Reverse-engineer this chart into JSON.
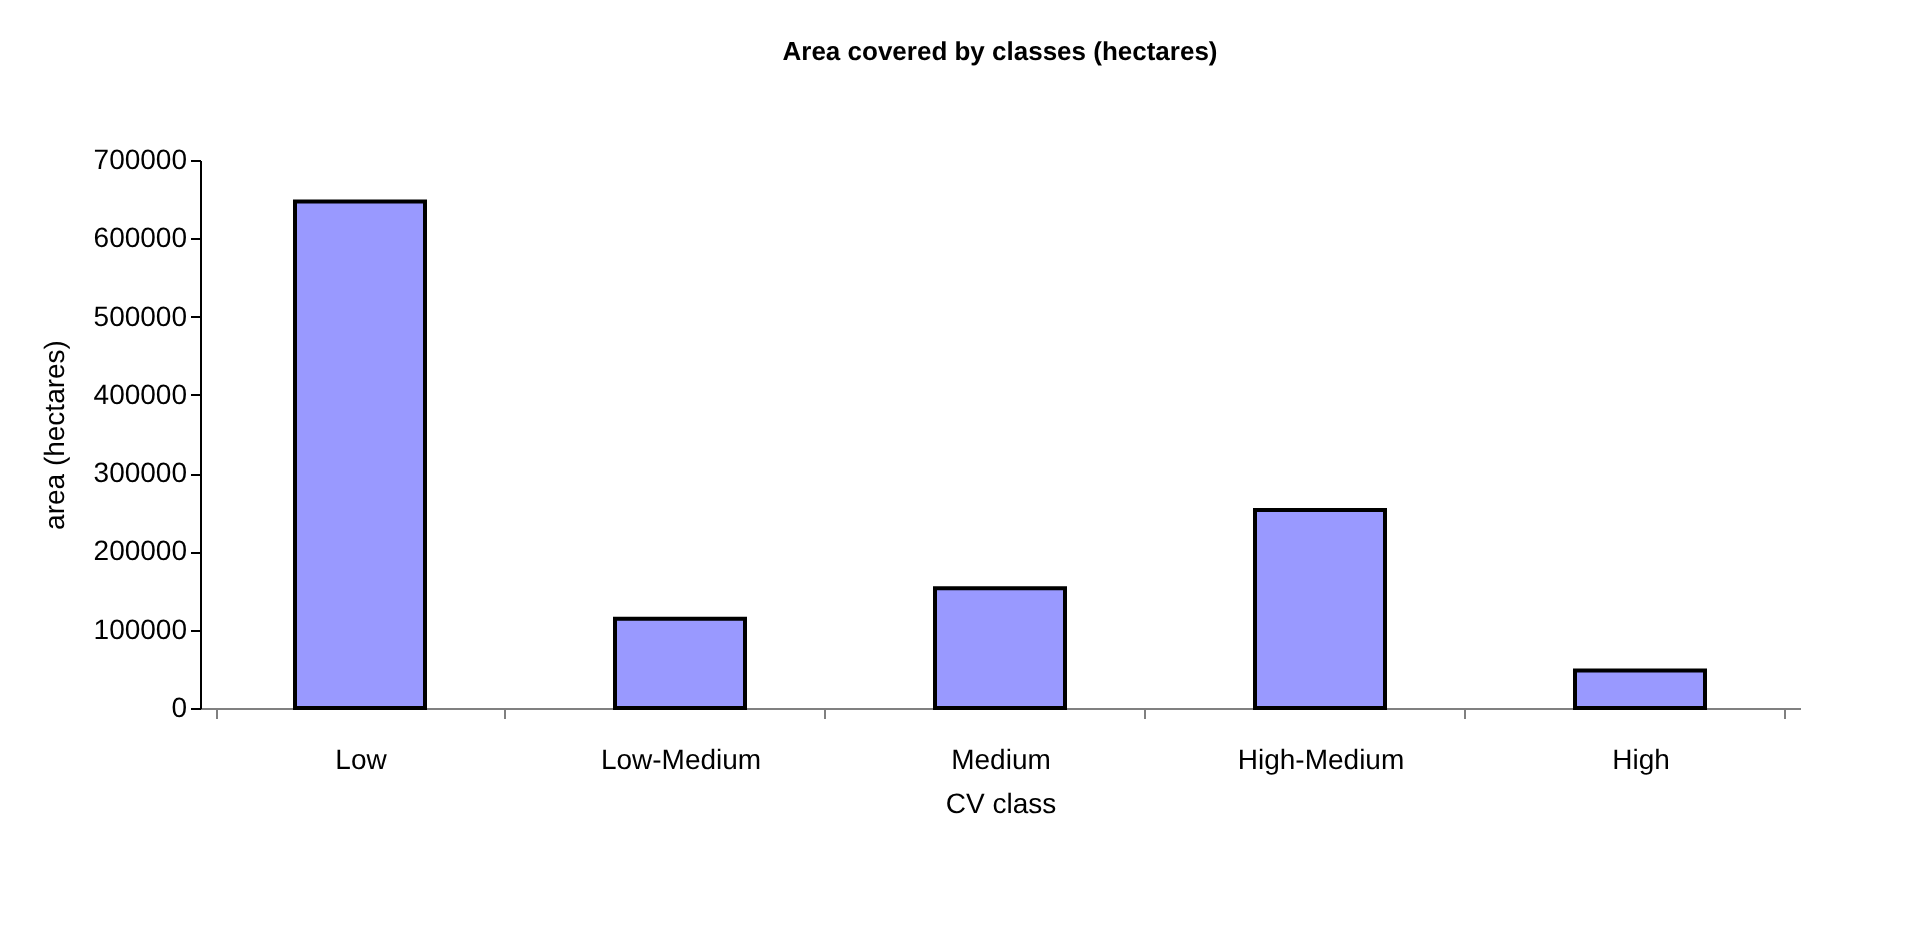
{
  "chart_data": {
    "type": "bar",
    "title": "Area covered by classes (hectares)",
    "xlabel": "CV class",
    "ylabel": "area (hectares)",
    "categories": [
      "Low",
      "Low-Medium",
      "Medium",
      "High-Medium",
      "High"
    ],
    "values": [
      647000,
      114000,
      153000,
      253000,
      48000
    ],
    "color": "#9999ff",
    "ylim": [
      0,
      700000
    ],
    "yticks": [
      0,
      100000,
      200000,
      300000,
      400000,
      500000,
      600000,
      700000
    ],
    "grid": false
  }
}
